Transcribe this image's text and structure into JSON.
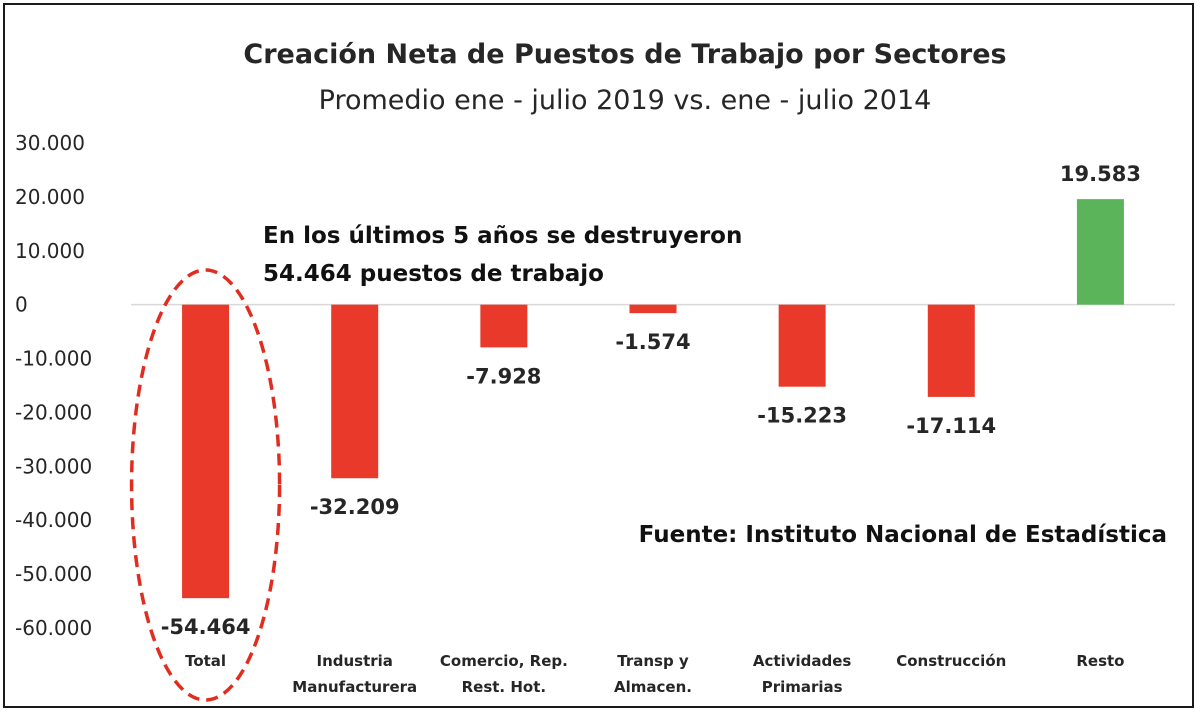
{
  "chart_data": {
    "type": "bar",
    "title": "Creación Neta de Puestos de Trabajo por Sectores",
    "subtitle": "Promedio ene - julio 2019 vs. ene - julio 2014",
    "categories": [
      [
        "Total"
      ],
      [
        "Industria",
        "Manufacturera"
      ],
      [
        "Comercio, Rep.",
        "Rest. Hot."
      ],
      [
        "Transp y",
        "Almacen."
      ],
      [
        "Actividades",
        "Primarias"
      ],
      [
        "Construcción"
      ],
      [
        "Resto"
      ]
    ],
    "values": [
      -54464,
      -32209,
      -7928,
      -1574,
      -15223,
      -17114,
      19583
    ],
    "value_labels": [
      "-54.464",
      "-32.209",
      "-7.928",
      "-1.574",
      "-15.223",
      "-17.114",
      "19.583"
    ],
    "ylim": [
      -60000,
      30000
    ],
    "yticks": [
      30000,
      20000,
      10000,
      0,
      -10000,
      -20000,
      -30000,
      -40000,
      -50000,
      -60000
    ],
    "ytick_labels": [
      "30.000",
      "20.000",
      "10.000",
      "0",
      "-10.000",
      "-20.000",
      "-30.000",
      "-40.000",
      "-50.000",
      "-60.000"
    ],
    "colors": {
      "negative": "#e8392a",
      "positive": "#5cb45a",
      "highlight": "#e02d1f",
      "zero_line": "#d9d9d9"
    },
    "grid": false,
    "legend": "none",
    "annotations": {
      "highlight_lines": [
        "En los últimos 5 años se destruyeron",
        "54.464 puestos de trabajo"
      ],
      "highlighted_category": "Total",
      "source": "Fuente: Instituto Nacional de Estadística"
    }
  }
}
